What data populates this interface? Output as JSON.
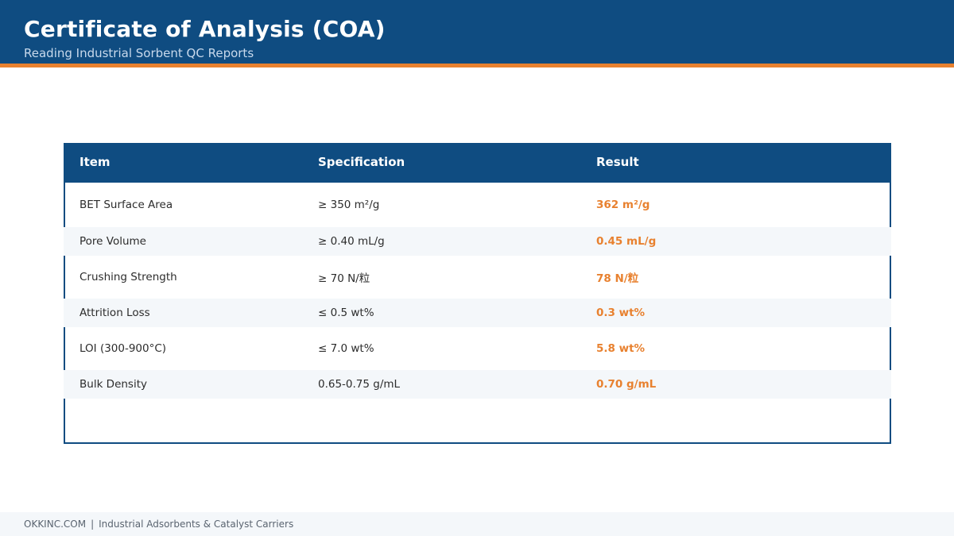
{
  "header": {
    "title": "Certificate of Analysis (COA)",
    "subtitle": "Reading Industrial Sorbent QC Reports"
  },
  "table": {
    "columns": [
      "Item",
      "Specification",
      "Result"
    ],
    "rows": [
      {
        "item": "BET Surface Area",
        "spec": "≥ 350 m²/g",
        "result": "362 m²/g"
      },
      {
        "item": "Pore Volume",
        "spec": "≥ 0.40 mL/g",
        "result": "0.45 mL/g"
      },
      {
        "item": "Crushing Strength",
        "spec": "≥ 70 N/粒",
        "result": "78 N/粒"
      },
      {
        "item": "Attrition Loss",
        "spec": "≤ 0.5 wt%",
        "result": "0.3 wt%"
      },
      {
        "item": "LOI (300-900°C)",
        "spec": "≤ 7.0 wt%",
        "result": "5.8 wt%"
      },
      {
        "item": "Bulk Density",
        "spec": "0.65-0.75 g/mL",
        "result": "0.70 g/mL"
      }
    ]
  },
  "footer": {
    "site": "OKKINC.COM",
    "separator": "|",
    "tagline": "Industrial Adsorbents & Catalyst Carriers"
  },
  "colors": {
    "brand_blue": "#0f4c81",
    "accent_orange": "#e8812f",
    "row_alt": "#f4f7fa"
  }
}
